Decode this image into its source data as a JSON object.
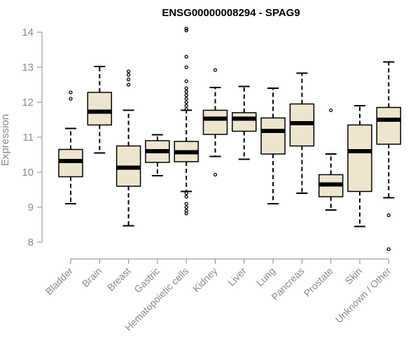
{
  "chart_data": {
    "type": "boxplot",
    "title": "ENSG00000008294 - SPAG9",
    "xlabel": "",
    "ylabel": "Expression",
    "ylim": [
      7.7,
      14.3
    ],
    "yticks": [
      8,
      9,
      10,
      11,
      12,
      13,
      14
    ],
    "box_fill": "#ede6cd",
    "box_stroke": "#000000",
    "categories": [
      "Bladder",
      "Brain",
      "Breast",
      "Gastric",
      "Hematopoietic cells",
      "Kidney",
      "Liver",
      "Lung",
      "Pancreas",
      "Prostate",
      "Skin",
      "Unknown / Other"
    ],
    "boxes": [
      {
        "category": "Bladder",
        "whisker_low": 9.1,
        "q1": 9.87,
        "median": 10.32,
        "q3": 10.65,
        "whisker_high": 11.25,
        "outliers": [
          12.1,
          12.28
        ]
      },
      {
        "category": "Brain",
        "whisker_low": 10.55,
        "q1": 11.35,
        "median": 11.73,
        "q3": 12.28,
        "whisker_high": 13.02,
        "outliers": []
      },
      {
        "category": "Breast",
        "whisker_low": 8.47,
        "q1": 9.6,
        "median": 10.13,
        "q3": 10.75,
        "whisker_high": 11.77,
        "outliers": [
          12.5,
          12.65,
          12.78,
          12.88
        ]
      },
      {
        "category": "Gastric",
        "whisker_low": 9.9,
        "q1": 10.28,
        "median": 10.6,
        "q3": 10.9,
        "whisker_high": 11.07,
        "outliers": []
      },
      {
        "category": "Hematopoietic cells",
        "whisker_low": 9.45,
        "q1": 10.3,
        "median": 10.57,
        "q3": 10.88,
        "whisker_high": 11.77,
        "outliers": [
          8.82,
          8.9,
          9.0,
          9.1,
          9.3,
          9.4,
          11.8,
          11.9,
          12.0,
          12.1,
          12.2,
          12.3,
          12.4,
          12.6,
          13.0,
          13.3,
          14.05,
          14.1
        ]
      },
      {
        "category": "Kidney",
        "whisker_low": 10.45,
        "q1": 11.08,
        "median": 11.53,
        "q3": 11.77,
        "whisker_high": 12.42,
        "outliers": [
          9.93,
          12.92
        ]
      },
      {
        "category": "Liver",
        "whisker_low": 10.37,
        "q1": 11.17,
        "median": 11.53,
        "q3": 11.7,
        "whisker_high": 12.45,
        "outliers": []
      },
      {
        "category": "Lung",
        "whisker_low": 9.1,
        "q1": 10.52,
        "median": 11.18,
        "q3": 11.55,
        "whisker_high": 12.4,
        "outliers": []
      },
      {
        "category": "Pancreas",
        "whisker_low": 9.4,
        "q1": 10.75,
        "median": 11.4,
        "q3": 11.95,
        "whisker_high": 12.83,
        "outliers": []
      },
      {
        "category": "Prostate",
        "whisker_low": 8.92,
        "q1": 9.3,
        "median": 9.65,
        "q3": 9.93,
        "whisker_high": 10.52,
        "outliers": [
          11.77
        ]
      },
      {
        "category": "Skin",
        "whisker_low": 8.45,
        "q1": 9.45,
        "median": 10.6,
        "q3": 11.35,
        "whisker_high": 11.9,
        "outliers": []
      },
      {
        "category": "Unknown / Other",
        "whisker_low": 9.27,
        "q1": 10.8,
        "median": 11.5,
        "q3": 11.85,
        "whisker_high": 13.15,
        "outliers": [
          7.8,
          8.77
        ]
      }
    ]
  }
}
